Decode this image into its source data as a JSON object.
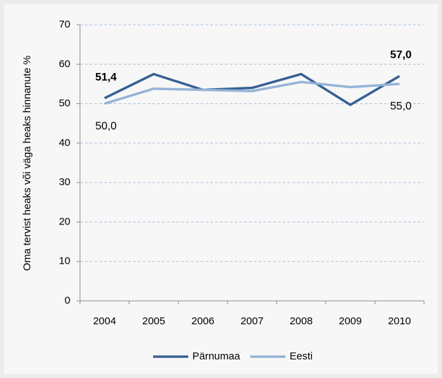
{
  "chart_data": {
    "type": "line",
    "y_label": "Oma tervist heaks või väga heaks hinnanute %",
    "categories": [
      "2004",
      "2005",
      "2006",
      "2007",
      "2008",
      "2009",
      "2010"
    ],
    "series": [
      {
        "name": "Pärnumaa",
        "color": "#376092",
        "values": [
          51.4,
          57.5,
          53.5,
          54.0,
          57.5,
          49.7,
          57.0
        ],
        "value_labels": [
          "51,4",
          null,
          null,
          null,
          null,
          null,
          "57,0"
        ]
      },
      {
        "name": "Eesti",
        "color": "#95b3d7",
        "values": [
          50.0,
          53.8,
          53.5,
          53.2,
          55.5,
          54.2,
          55.0
        ],
        "value_labels": [
          "50,0",
          null,
          null,
          null,
          null,
          null,
          "55,0"
        ]
      }
    ],
    "ylim": [
      0,
      70
    ],
    "yticks": [
      0,
      10,
      20,
      30,
      40,
      50,
      60,
      70
    ],
    "grid": true,
    "legend": "bottom"
  }
}
